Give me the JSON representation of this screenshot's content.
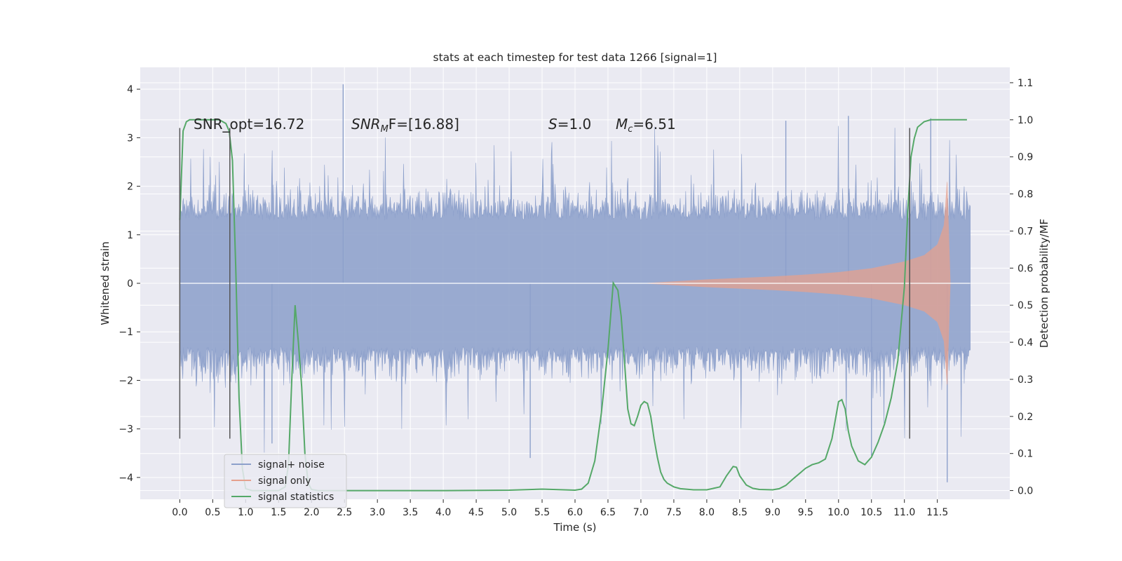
{
  "chart_data": {
    "type": "line",
    "title": "stats at each timestep for test data 1266 [signal=1]",
    "xlabel": "Time (s)",
    "ylabel": "Whitened strain",
    "ylabel_right": "Detection probability/MF",
    "xlim": [
      -0.6,
      12.6
    ],
    "ylim": [
      -4.45,
      4.45
    ],
    "ylim_right": [
      -0.0235,
      1.1415
    ],
    "x_ticks": [
      0.0,
      0.5,
      1.0,
      1.5,
      2.0,
      2.5,
      3.0,
      3.5,
      4.0,
      4.5,
      5.0,
      5.5,
      6.0,
      6.5,
      7.0,
      7.5,
      8.0,
      8.5,
      9.0,
      9.5,
      10.0,
      10.5,
      11.0,
      11.5
    ],
    "x_tick_labels": [
      "0.0",
      "0.5",
      "1.0",
      "1.5",
      "2.0",
      "2.5",
      "3.0",
      "3.5",
      "4.0",
      "4.5",
      "5.0",
      "5.5",
      "6.0",
      "6.5",
      "7.0",
      "7.5",
      "8.0",
      "8.5",
      "9.0",
      "9.5",
      "10.0",
      "10.5",
      "11.0",
      "11.5"
    ],
    "y_ticks": [
      -4,
      -3,
      -2,
      -1,
      0,
      1,
      2,
      3,
      4
    ],
    "y_tick_labels": [
      "−4",
      "−3",
      "−2",
      "−1",
      "0",
      "1",
      "2",
      "3",
      "4"
    ],
    "y_ticks_right": [
      0.0,
      0.1,
      0.2,
      0.3,
      0.4,
      0.5,
      0.6,
      0.7,
      0.8,
      0.9,
      1.0,
      1.1
    ],
    "y_tick_labels_right": [
      "0.0",
      "0.1",
      "0.2",
      "0.3",
      "0.4",
      "0.5",
      "0.6",
      "0.7",
      "0.8",
      "0.9",
      "1.0",
      "1.1"
    ],
    "grid": true,
    "legend_position": "lower-left",
    "annotations": {
      "snr_opt": "SNR_opt=16.72",
      "snr_mf_sym": "SNR",
      "snr_mf_sub": "M",
      "snr_mf_rest": "F=[16.88]",
      "s_sym": "S",
      "s_rest": "=1.0",
      "mc_sym": "M",
      "mc_sub": "c",
      "mc_rest": "=6.51"
    },
    "vertical_lines": [
      {
        "x": 0.0,
        "ymin": -3.2,
        "ymax": 3.2
      },
      {
        "x": 0.76,
        "ymin": -3.2,
        "ymax": 3.2
      },
      {
        "x": 11.08,
        "ymin": -3.2,
        "ymax": 3.2
      }
    ],
    "series": [
      {
        "name": "signal+ noise",
        "axis": "left",
        "color": "#8da0cb",
        "note": "dense noise trace, envelope ~±1.3 with spikes to ±3.5, min -4.1 near t=11.65, max 4.1 near t=2.5",
        "x": [
          0.0,
          12.0
        ],
        "envelope": [
          1.3,
          1.3
        ]
      },
      {
        "name": "signal only",
        "axis": "left",
        "color": "#e5a08d",
        "x": [
          7.0,
          7.5,
          8.0,
          8.5,
          9.0,
          9.5,
          10.0,
          10.5,
          11.0,
          11.3,
          11.5,
          11.6,
          11.65,
          11.7
        ],
        "envelope": [
          0.0,
          0.04,
          0.08,
          0.11,
          0.14,
          0.18,
          0.23,
          0.31,
          0.45,
          0.58,
          0.8,
          1.2,
          2.2,
          0.0
        ]
      },
      {
        "name": "signal statistics",
        "axis": "right",
        "color": "#55a868",
        "x": [
          0.0,
          0.05,
          0.1,
          0.15,
          0.2,
          0.3,
          0.4,
          0.5,
          0.6,
          0.7,
          0.75,
          0.8,
          0.85,
          0.9,
          0.95,
          1.0,
          1.1,
          1.3,
          1.5,
          1.6,
          1.65,
          1.7,
          1.75,
          1.8,
          1.85,
          1.9,
          1.95,
          2.0,
          2.1,
          2.5,
          3.0,
          4.0,
          5.0,
          5.5,
          6.0,
          6.1,
          6.2,
          6.3,
          6.4,
          6.5,
          6.58,
          6.65,
          6.7,
          6.75,
          6.8,
          6.85,
          6.9,
          6.95,
          7.0,
          7.05,
          7.1,
          7.15,
          7.2,
          7.25,
          7.3,
          7.35,
          7.4,
          7.5,
          7.6,
          7.8,
          8.0,
          8.2,
          8.3,
          8.4,
          8.45,
          8.5,
          8.6,
          8.7,
          8.8,
          9.0,
          9.1,
          9.2,
          9.3,
          9.4,
          9.5,
          9.6,
          9.7,
          9.8,
          9.9,
          10.0,
          10.05,
          10.1,
          10.15,
          10.2,
          10.3,
          10.4,
          10.5,
          10.6,
          10.7,
          10.8,
          10.9,
          11.0,
          11.05,
          11.1,
          11.15,
          11.2,
          11.3,
          11.4,
          11.5,
          11.6,
          11.7,
          11.9,
          11.95
        ],
        "values": [
          0.73,
          0.97,
          0.995,
          1.0,
          1.0,
          1.0,
          1.0,
          1.0,
          1.0,
          0.99,
          0.97,
          0.89,
          0.6,
          0.25,
          0.06,
          0.005,
          0.0,
          0.0,
          0.0,
          0.01,
          0.07,
          0.3,
          0.5,
          0.4,
          0.28,
          0.1,
          0.02,
          0.003,
          0.0,
          0.0,
          0.0,
          0.0,
          0.001,
          0.004,
          0.001,
          0.004,
          0.02,
          0.08,
          0.21,
          0.38,
          0.56,
          0.54,
          0.47,
          0.35,
          0.22,
          0.18,
          0.175,
          0.2,
          0.23,
          0.24,
          0.235,
          0.2,
          0.14,
          0.09,
          0.05,
          0.03,
          0.02,
          0.01,
          0.005,
          0.002,
          0.002,
          0.01,
          0.04,
          0.065,
          0.063,
          0.04,
          0.015,
          0.006,
          0.003,
          0.002,
          0.005,
          0.014,
          0.03,
          0.045,
          0.06,
          0.07,
          0.075,
          0.085,
          0.14,
          0.24,
          0.245,
          0.22,
          0.16,
          0.12,
          0.08,
          0.07,
          0.09,
          0.13,
          0.18,
          0.25,
          0.35,
          0.55,
          0.75,
          0.9,
          0.95,
          0.98,
          0.995,
          1.0,
          1.0,
          1.0,
          1.0,
          1.0,
          1.0
        ]
      }
    ]
  }
}
